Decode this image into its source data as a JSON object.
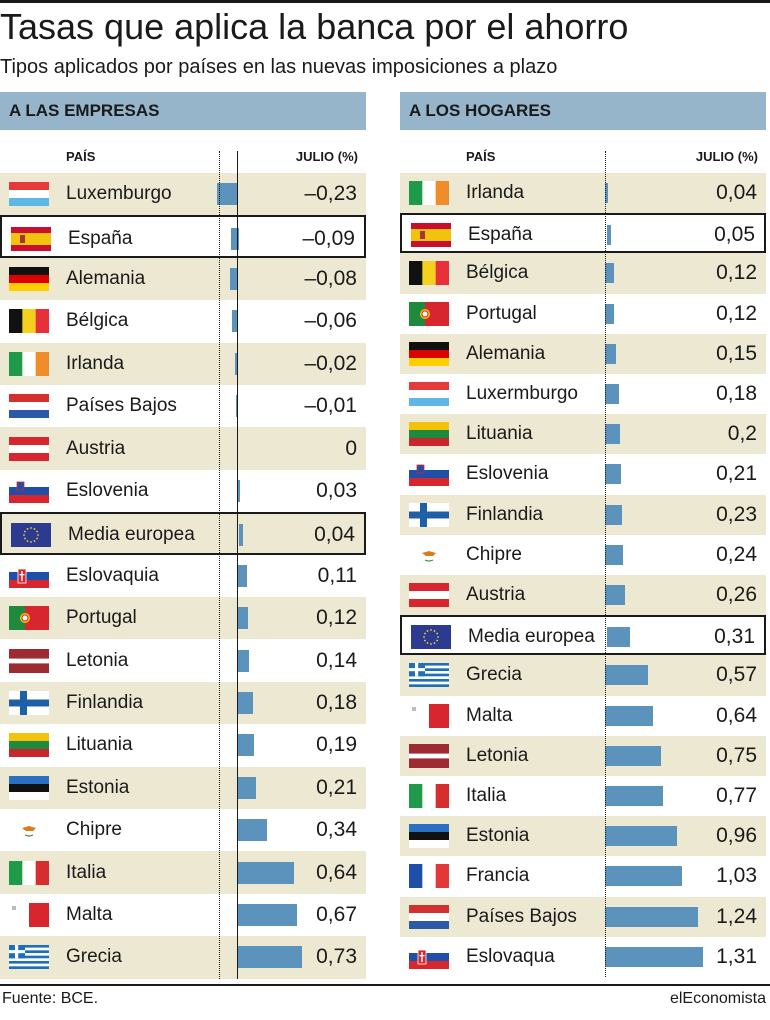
{
  "header": {
    "title": "Tasas que aplica la banca por el ahorro",
    "subtitle": "Tipos aplicados por países en las nuevas imposiciones a plazo"
  },
  "footer": {
    "source": "Fuente: BCE.",
    "brand": "elEconomista"
  },
  "colors": {
    "bar": "#5b93bc",
    "header_band": "#96b5ca",
    "shaded_row": "#ede8d2"
  },
  "chart_data": [
    {
      "type": "bar",
      "title": "A LAS EMPRESAS",
      "column_country": "PAÍS",
      "column_value": "JULIO (%)",
      "unit": "%",
      "rows": [
        {
          "label": "Luxemburgo",
          "value": -0.23,
          "display": "–0,23",
          "flag": "luxembourg-flag"
        },
        {
          "label": "España",
          "value": -0.09,
          "display": "–0,09",
          "flag": "spain-flag",
          "highlight": true
        },
        {
          "label": "Alemania",
          "value": -0.08,
          "display": "–0,08",
          "flag": "germany-flag"
        },
        {
          "label": "Bélgica",
          "value": -0.06,
          "display": "–0,06",
          "flag": "belgium-flag"
        },
        {
          "label": "Irlanda",
          "value": -0.02,
          "display": "–0,02",
          "flag": "ireland-flag"
        },
        {
          "label": "Países Bajos",
          "value": -0.01,
          "display": "–0,01",
          "flag": "netherlands-flag"
        },
        {
          "label": "Austria",
          "value": 0,
          "display": "0",
          "flag": "austria-flag"
        },
        {
          "label": "Eslovenia",
          "value": 0.03,
          "display": "0,03",
          "flag": "slovenia-flag"
        },
        {
          "label": "Media europea",
          "value": 0.04,
          "display": "0,04",
          "flag": "eu-flag",
          "highlight": true
        },
        {
          "label": "Eslovaquia",
          "value": 0.11,
          "display": "0,11",
          "flag": "slovakia-flag"
        },
        {
          "label": "Portugal",
          "value": 0.12,
          "display": "0,12",
          "flag": "portugal-flag"
        },
        {
          "label": "Letonia",
          "value": 0.14,
          "display": "0,14",
          "flag": "latvia-flag"
        },
        {
          "label": "Finlandia",
          "value": 0.18,
          "display": "0,18",
          "flag": "finland-flag"
        },
        {
          "label": "Lituania",
          "value": 0.19,
          "display": "0,19",
          "flag": "lithuania-flag"
        },
        {
          "label": "Estonia",
          "value": 0.21,
          "display": "0,21",
          "flag": "estonia-flag"
        },
        {
          "label": "Chipre",
          "value": 0.34,
          "display": "0,34",
          "flag": "cyprus-flag"
        },
        {
          "label": "Italia",
          "value": 0.64,
          "display": "0,64",
          "flag": "italy-flag"
        },
        {
          "label": "Malta",
          "value": 0.67,
          "display": "0,67",
          "flag": "malta-flag"
        },
        {
          "label": "Grecia",
          "value": 0.73,
          "display": "0,73",
          "flag": "greece-flag"
        }
      ]
    },
    {
      "type": "bar",
      "title": "A LOS HOGARES",
      "column_country": "PAÍS",
      "column_value": "JULIO (%)",
      "unit": "%",
      "rows": [
        {
          "label": "Irlanda",
          "value": 0.04,
          "display": "0,04",
          "flag": "ireland-flag"
        },
        {
          "label": "España",
          "value": 0.05,
          "display": "0,05",
          "flag": "spain-flag",
          "highlight": true
        },
        {
          "label": "Bélgica",
          "value": 0.12,
          "display": "0,12",
          "flag": "belgium-flag"
        },
        {
          "label": "Portugal",
          "value": 0.12,
          "display": "0,12",
          "flag": "portugal-flag"
        },
        {
          "label": "Alemania",
          "value": 0.15,
          "display": "0,15",
          "flag": "germany-flag"
        },
        {
          "label": "Luxermburgo",
          "value": 0.18,
          "display": "0,18",
          "flag": "luxembourg-flag"
        },
        {
          "label": "Lituania",
          "value": 0.2,
          "display": "0,2",
          "flag": "lithuania-flag"
        },
        {
          "label": "Eslovenia",
          "value": 0.21,
          "display": "0,21",
          "flag": "slovenia-flag"
        },
        {
          "label": "Finlandia",
          "value": 0.23,
          "display": "0,23",
          "flag": "finland-flag"
        },
        {
          "label": "Chipre",
          "value": 0.24,
          "display": "0,24",
          "flag": "cyprus-flag"
        },
        {
          "label": "Austria",
          "value": 0.26,
          "display": "0,26",
          "flag": "austria-flag"
        },
        {
          "label": "Media europea",
          "value": 0.31,
          "display": "0,31",
          "flag": "eu-flag",
          "highlight": true
        },
        {
          "label": "Grecia",
          "value": 0.57,
          "display": "0,57",
          "flag": "greece-flag"
        },
        {
          "label": "Malta",
          "value": 0.64,
          "display": "0,64",
          "flag": "malta-flag"
        },
        {
          "label": "Letonia",
          "value": 0.75,
          "display": "0,75",
          "flag": "latvia-flag"
        },
        {
          "label": "Italia",
          "value": 0.77,
          "display": "0,77",
          "flag": "italy-flag"
        },
        {
          "label": "Estonia",
          "value": 0.96,
          "display": "0,96",
          "flag": "estonia-flag"
        },
        {
          "label": "Francia",
          "value": 1.03,
          "display": "1,03",
          "flag": "france-flag"
        },
        {
          "label": "Países Bajos",
          "value": 1.24,
          "display": "1,24",
          "flag": "netherlands-flag"
        },
        {
          "label": "Eslovaqua",
          "value": 1.31,
          "display": "1,31",
          "flag": "slovakia-flag"
        }
      ]
    }
  ]
}
